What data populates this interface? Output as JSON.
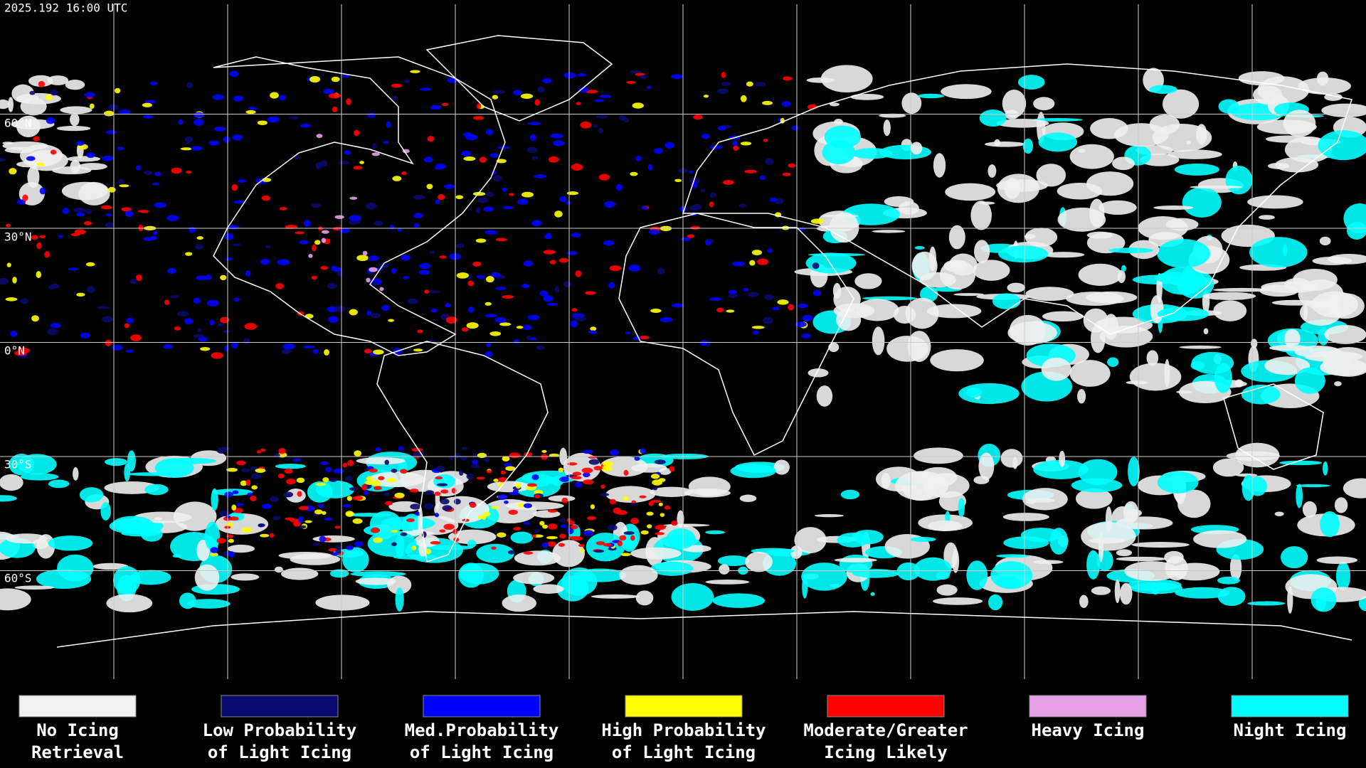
{
  "header": {
    "timestamp": "2025.192 16:00 UTC"
  },
  "map": {
    "lat_labels": [
      "60°N",
      "30°N",
      "0°N",
      "30°S",
      "60°S"
    ]
  },
  "legend": {
    "items": [
      {
        "color": "#f0f0f0",
        "label": [
          "No Icing",
          "Retrieval"
        ]
      },
      {
        "color": "#0a0a6e",
        "label": [
          "Low Probability",
          "of Light Icing"
        ]
      },
      {
        "color": "#0000ff",
        "label": [
          "Med.Probability",
          "of Light Icing"
        ]
      },
      {
        "color": "#ffff00",
        "label": [
          "High Probability",
          "of Light Icing"
        ]
      },
      {
        "color": "#ff0000",
        "label": [
          "Moderate/Greater",
          "Icing Likely"
        ]
      },
      {
        "color": "#e6a0e6",
        "label": [
          "Heavy Icing",
          ""
        ]
      },
      {
        "color": "#00ffff",
        "label": [
          "Night Icing",
          ""
        ]
      }
    ]
  }
}
